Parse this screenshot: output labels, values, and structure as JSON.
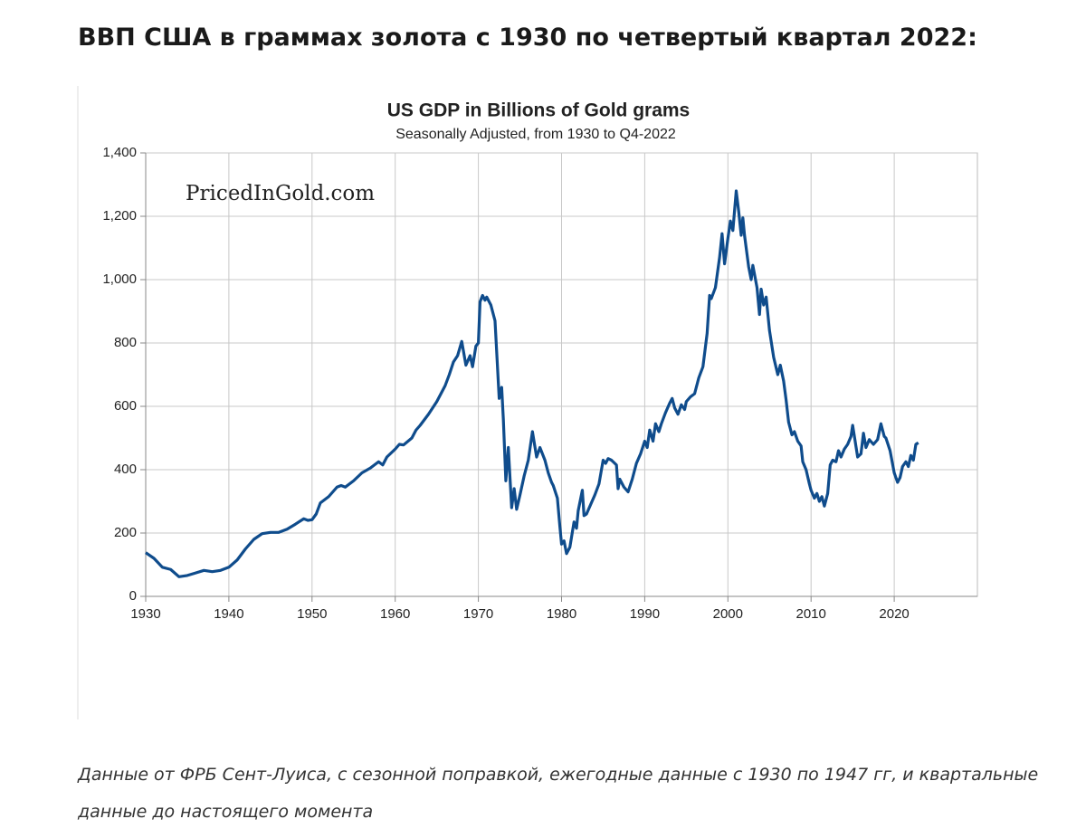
{
  "heading": "ВВП США в граммах золота с 1930 по четвертый квартал 2022:",
  "caption": "Данные от ФРБ Сент-Луиса, с сезонной поправкой, ежегодные данные с 1930 по 1947 гг, и квартальные данные до настоящего момента",
  "chart_data": {
    "type": "line",
    "title": "US GDP in Billions of Gold grams",
    "subtitle": "Seasonally Adjusted, from 1930 to Q4-2022",
    "watermark": "PricedInGold.com",
    "xlim": [
      1930,
      2030
    ],
    "xticks": [
      1930,
      1940,
      1950,
      1960,
      1970,
      1980,
      1990,
      2000,
      2010,
      2020
    ],
    "ylim": [
      0,
      1400
    ],
    "yticks": [
      0,
      200,
      400,
      600,
      800,
      {
        "value": 1000,
        "label": "1,000"
      },
      {
        "value": 1200,
        "label": "1,200"
      },
      {
        "value": 1400,
        "label": "1,400"
      }
    ],
    "grid": true,
    "color": "#0f4c8c",
    "x": [
      1930,
      1931,
      1932,
      1933,
      1934,
      1935,
      1936,
      1937,
      1938,
      1939,
      1940,
      1941,
      1942,
      1943,
      1944,
      1945,
      1946,
      1947,
      1948,
      1949,
      1949.5,
      1950,
      1950.5,
      1951,
      1952,
      1953,
      1953.5,
      1954,
      1955,
      1956,
      1957,
      1958,
      1958.5,
      1959,
      1960,
      1960.5,
      1961,
      1962,
      1962.5,
      1963,
      1964,
      1965,
      1966,
      1966.5,
      1967,
      1967.5,
      1968,
      1968.5,
      1969,
      1969.3,
      1969.7,
      1970,
      1970.2,
      1970.5,
      1970.8,
      1971,
      1971.5,
      1972,
      1972.5,
      1972.8,
      1973,
      1973.3,
      1973.6,
      1974,
      1974.3,
      1974.6,
      1975,
      1975.5,
      1976,
      1976.5,
      1977,
      1977.4,
      1978,
      1978.4,
      1978.8,
      1979,
      1979.5,
      1979.8,
      1980,
      1980.3,
      1980.6,
      1981,
      1981.5,
      1981.8,
      1982,
      1982.5,
      1982.7,
      1983,
      1983.5,
      1984,
      1984.5,
      1985,
      1985.3,
      1985.6,
      1986,
      1986.6,
      1986.8,
      1987,
      1987.5,
      1988,
      1988.5,
      1989,
      1989.5,
      1990,
      1990.3,
      1990.6,
      1991,
      1991.3,
      1991.7,
      1992,
      1992.5,
      1993,
      1993.3,
      1993.6,
      1994,
      1994.4,
      1994.8,
      1995,
      1995.5,
      1996,
      1996.5,
      1997,
      1997.5,
      1997.8,
      1998,
      1998.5,
      1999,
      1999.3,
      1999.6,
      2000,
      2000.3,
      2000.6,
      2001,
      2001.3,
      2001.6,
      2001.8,
      2002,
      2002.5,
      2002.8,
      2003,
      2003.5,
      2003.8,
      2004,
      2004.3,
      2004.6,
      2005,
      2005.5,
      2006,
      2006.3,
      2006.7,
      2007,
      2007.3,
      2007.7,
      2008,
      2008.4,
      2008.8,
      2009,
      2009.4,
      2009.8,
      2010,
      2010.4,
      2010.7,
      2011,
      2011.3,
      2011.6,
      2012,
      2012.3,
      2012.6,
      2013,
      2013.3,
      2013.6,
      2014,
      2014.4,
      2014.8,
      2015,
      2015.3,
      2015.6,
      2016,
      2016.3,
      2016.6,
      2017,
      2017.5,
      2018,
      2018.4,
      2018.8,
      2019,
      2019.5,
      2020,
      2020.4,
      2020.7,
      2021,
      2021.4,
      2021.7,
      2022,
      2022.3,
      2022.6,
      2022.9
    ],
    "values": [
      138,
      120,
      92,
      85,
      62,
      66,
      74,
      82,
      78,
      82,
      92,
      115,
      150,
      180,
      198,
      202,
      202,
      212,
      228,
      245,
      240,
      242,
      260,
      295,
      315,
      345,
      350,
      345,
      365,
      390,
      405,
      425,
      415,
      440,
      465,
      480,
      478,
      500,
      525,
      540,
      575,
      615,
      665,
      700,
      740,
      760,
      805,
      730,
      760,
      725,
      790,
      800,
      930,
      950,
      935,
      945,
      920,
      870,
      625,
      660,
      560,
      365,
      470,
      280,
      340,
      275,
      320,
      380,
      430,
      520,
      440,
      470,
      430,
      390,
      360,
      350,
      310,
      220,
      165,
      175,
      135,
      155,
      235,
      215,
      270,
      335,
      255,
      260,
      290,
      320,
      355,
      430,
      420,
      435,
      430,
      415,
      340,
      370,
      345,
      330,
      370,
      420,
      450,
      490,
      470,
      525,
      490,
      545,
      520,
      545,
      580,
      610,
      625,
      595,
      575,
      605,
      590,
      615,
      630,
      640,
      690,
      725,
      830,
      950,
      940,
      975,
      1070,
      1145,
      1050,
      1130,
      1185,
      1155,
      1280,
      1215,
      1140,
      1195,
      1140,
      1040,
      1000,
      1045,
      975,
      890,
      970,
      920,
      945,
      840,
      755,
      700,
      730,
      680,
      620,
      550,
      510,
      520,
      490,
      475,
      425,
      400,
      355,
      335,
      310,
      325,
      300,
      315,
      285,
      325,
      415,
      430,
      425,
      460,
      440,
      465,
      480,
      505,
      540,
      490,
      440,
      450,
      515,
      470,
      495,
      480,
      495,
      545,
      505,
      500,
      460,
      390,
      360,
      375,
      410,
      425,
      410,
      445,
      430,
      480,
      485
    ]
  }
}
